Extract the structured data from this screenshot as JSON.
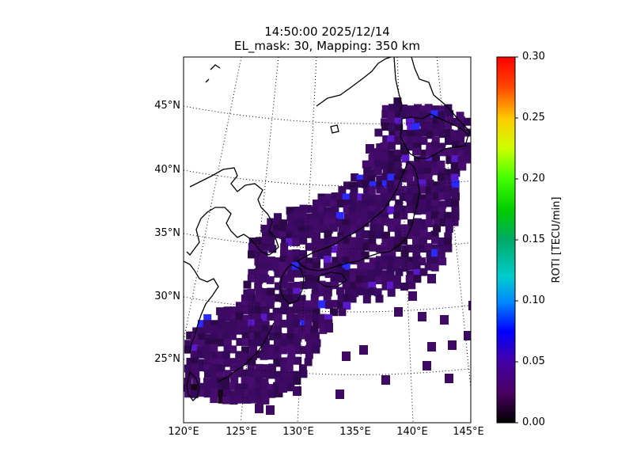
{
  "title": {
    "line1": "14:50:00 2025/12/14",
    "line2": "EL_mask: 30, Mapping: 350 km"
  },
  "map": {
    "lat_labels": [
      "45°N",
      "40°N",
      "35°N",
      "30°N",
      "25°N"
    ],
    "lon_labels": [
      "120°E",
      "125°E",
      "130°E",
      "135°E",
      "140°E",
      "145°E"
    ],
    "lat_values": [
      45,
      40,
      35,
      30,
      25
    ],
    "lon_values": [
      120,
      125,
      130,
      135,
      140,
      145
    ],
    "extent": {
      "lon_min": 120,
      "lon_max": 145,
      "lat_min": 20,
      "lat_max": 49
    },
    "grid": "dotted",
    "coastline_color": "#000000"
  },
  "colorbar": {
    "label": "ROTI [TECU/min]",
    "ticks": [
      "0.00",
      "0.05",
      "0.10",
      "0.15",
      "0.20",
      "0.25",
      "0.30"
    ],
    "vmin": 0.0,
    "vmax": 0.3,
    "colormap": "nipy_spectral-like"
  },
  "colors": {
    "dominant_cell": "#3a0a5e",
    "background": "#ffffff"
  }
}
